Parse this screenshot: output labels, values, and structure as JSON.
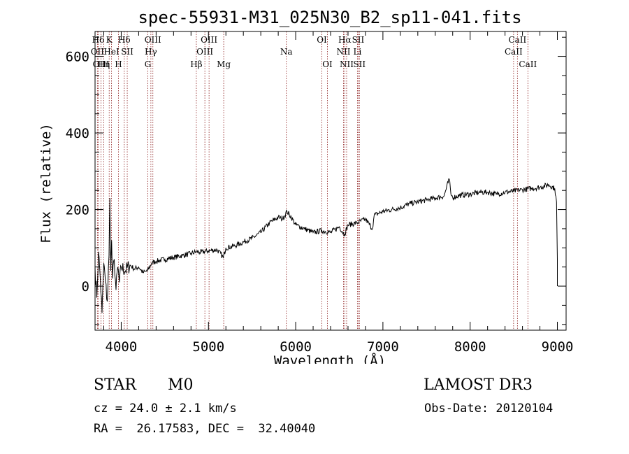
{
  "chart_data": {
    "type": "line",
    "title": "spec-55931-M31_025N30_B2_sp11-041.fits",
    "xlabel": "Wavelength (Å)",
    "ylabel": "Flux (relative)",
    "xlim": [
      3700,
      9100
    ],
    "ylim": [
      -115,
      665
    ],
    "xticks": [
      4000,
      5000,
      6000,
      7000,
      8000,
      9000
    ],
    "xtick_labels": [
      "4000",
      "5000",
      "6000",
      "7000",
      "8000",
      "9000"
    ],
    "yticks": [
      0,
      200,
      400,
      600
    ],
    "ytick_labels": [
      "0",
      "200",
      "400",
      "600"
    ],
    "series": [
      {
        "name": "flux",
        "x": [
          3700,
          3720,
          3740,
          3760,
          3780,
          3800,
          3820,
          3840,
          3860,
          3870,
          3880,
          3890,
          3900,
          3920,
          3940,
          3960,
          3980,
          4000,
          4050,
          4100,
          4150,
          4200,
          4250,
          4300,
          4350,
          4400,
          4500,
          4600,
          4700,
          4800,
          4860,
          4900,
          5000,
          5100,
          5170,
          5200,
          5300,
          5400,
          5500,
          5600,
          5700,
          5800,
          5850,
          5900,
          5950,
          6000,
          6100,
          6200,
          6300,
          6400,
          6500,
          6560,
          6600,
          6700,
          6800,
          6880,
          6900,
          7000,
          7100,
          7200,
          7300,
          7400,
          7500,
          7600,
          7700,
          7760,
          7780,
          7800,
          7900,
          8000,
          8100,
          8200,
          8300,
          8400,
          8500,
          8600,
          8700,
          8800,
          8900,
          8970,
          8990,
          9000,
          9000
        ],
        "y": [
          50,
          -30,
          90,
          20,
          -70,
          60,
          10,
          -40,
          80,
          230,
          40,
          120,
          20,
          70,
          -10,
          50,
          10,
          50,
          40,
          55,
          45,
          50,
          35,
          40,
          60,
          65,
          70,
          75,
          80,
          85,
          90,
          88,
          92,
          95,
          75,
          100,
          105,
          115,
          125,
          140,
          165,
          180,
          175,
          195,
          180,
          160,
          150,
          140,
          145,
          140,
          155,
          135,
          160,
          165,
          175,
          150,
          185,
          195,
          200,
          205,
          215,
          220,
          225,
          230,
          235,
          280,
          240,
          232,
          238,
          240,
          245,
          245,
          240,
          245,
          248,
          252,
          255,
          258,
          265,
          255,
          220,
          70,
          0
        ]
      }
    ],
    "lines": [
      {
        "label": "Hδ",
        "wavelength": 3736,
        "row": 1
      },
      {
        "label": "K",
        "wavelength": 3862,
        "row": 1
      },
      {
        "label": "Hδ",
        "wavelength": 4035,
        "row": 1
      },
      {
        "label": "OII",
        "wavelength": 3727,
        "row": 2
      },
      {
        "label": "HeI",
        "wavelength": 3889,
        "row": 2
      },
      {
        "label": "SII",
        "wavelength": 4069,
        "row": 2
      },
      {
        "label": "OIII",
        "wavelength": 3769,
        "row": 3
      },
      {
        "label": "Hη",
        "wavelength": 3799,
        "row": 3
      },
      {
        "label": "H",
        "wavelength": 3968,
        "row": 3
      },
      {
        "label": "OIII",
        "wavelength": 4363,
        "row": 1
      },
      {
        "label": "Hγ",
        "wavelength": 4340,
        "row": 2
      },
      {
        "label": "G",
        "wavelength": 4305,
        "row": 3
      },
      {
        "label": "OIII",
        "wavelength": 5007,
        "row": 1
      },
      {
        "label": "OIII",
        "wavelength": 4959,
        "row": 2
      },
      {
        "label": "Hβ",
        "wavelength": 4861,
        "row": 3
      },
      {
        "label": "Mg",
        "wavelength": 5175,
        "row": 3
      },
      {
        "label": "Na",
        "wavelength": 5893,
        "row": 2
      },
      {
        "label": "OI",
        "wavelength": 6300,
        "row": 1
      },
      {
        "label": "OI",
        "wavelength": 6364,
        "row": 3
      },
      {
        "label": "Hα",
        "wavelength": 6563,
        "row": 1
      },
      {
        "label": "SII",
        "wavelength": 6716,
        "row": 1
      },
      {
        "label": "NII",
        "wavelength": 6548,
        "row": 2
      },
      {
        "label": "Li",
        "wavelength": 6708,
        "row": 2
      },
      {
        "label": "NII",
        "wavelength": 6584,
        "row": 3
      },
      {
        "label": "SII",
        "wavelength": 6731,
        "row": 3
      },
      {
        "label": "CaII",
        "wavelength": 8542,
        "row": 1
      },
      {
        "label": "CaII",
        "wavelength": 8498,
        "row": 2
      },
      {
        "label": "CaII",
        "wavelength": 8662,
        "row": 3
      }
    ]
  },
  "footer": {
    "object_class": "STAR",
    "subclass": "M0",
    "survey": "LAMOST DR3",
    "cz": "cz = 24.0 ± 2.1 km/s",
    "obs_date": "Obs-Date: 20120104",
    "coords": "RA =  26.17583, DEC =  32.40040"
  },
  "colors": {
    "line_marker": "#8b1a1a",
    "spectrum": "#000000"
  }
}
